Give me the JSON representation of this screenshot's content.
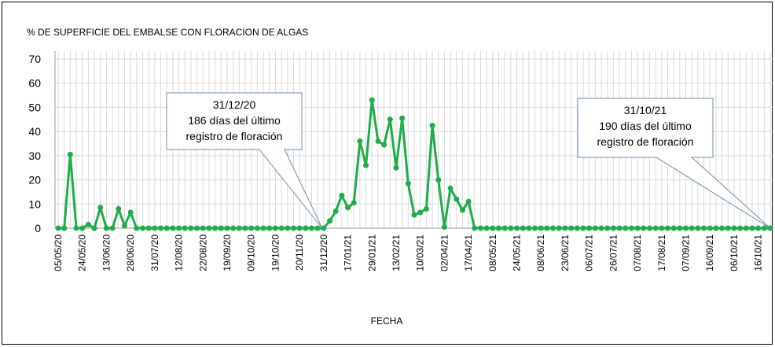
{
  "chart_data": {
    "type": "line",
    "title": "% DE SUPERFICIE DEL EMBALSE CON FLORACION DE ALGAS",
    "x_label": "FECHA",
    "categories": [
      "05/05/20",
      null,
      null,
      null,
      "24/05/20",
      null,
      null,
      null,
      "13/06/20",
      null,
      null,
      null,
      "28/06/20",
      null,
      null,
      null,
      "31/07/20",
      null,
      null,
      null,
      "12/08/20",
      null,
      null,
      null,
      "22/08/20",
      null,
      null,
      null,
      "19/09/20",
      null,
      null,
      null,
      "09/10/20",
      null,
      null,
      null,
      "19/10/20",
      null,
      null,
      null,
      "20/11/20",
      null,
      null,
      null,
      "31/12/20",
      null,
      null,
      null,
      "17/01/21",
      null,
      null,
      null,
      "29/01/21",
      null,
      null,
      null,
      "13/02/21",
      null,
      null,
      null,
      "10/03/21",
      null,
      null,
      null,
      "02/04/21",
      null,
      null,
      null,
      "17/04/21",
      null,
      null,
      null,
      "08/05/21",
      null,
      null,
      null,
      "24/05/21",
      null,
      null,
      null,
      "08/06/21",
      null,
      null,
      null,
      "23/06/21",
      null,
      null,
      null,
      "06/07/21",
      null,
      null,
      null,
      "26/07/21",
      null,
      null,
      null,
      "07/08/21",
      null,
      null,
      null,
      "17/08/21",
      null,
      null,
      null,
      "07/09/21",
      null,
      null,
      null,
      "16/09/21",
      null,
      null,
      null,
      "06/10/21",
      null,
      null,
      null,
      "16/10/21",
      null,
      null
    ],
    "values": [
      0,
      0,
      30.5,
      0,
      0,
      1.5,
      0,
      8.5,
      0,
      0,
      8,
      1,
      6.5,
      0,
      0,
      0,
      0,
      0,
      0,
      0,
      0,
      0,
      0,
      0,
      0,
      0,
      0,
      0,
      0,
      0,
      0,
      0,
      0,
      0,
      0,
      0,
      0,
      0,
      0,
      0,
      0,
      0,
      0,
      0,
      0,
      3,
      7,
      13.5,
      8.5,
      10.5,
      36,
      26,
      53,
      36,
      34.5,
      45,
      25,
      45.5,
      18.5,
      5.5,
      6.5,
      8,
      42.5,
      20,
      0.5,
      16.5,
      12,
      7.5,
      11,
      0,
      0,
      0,
      0,
      0,
      0,
      0,
      0,
      0,
      0,
      0,
      0,
      0,
      0,
      0,
      0,
      0,
      0,
      0,
      0,
      0,
      0,
      0,
      0,
      0,
      0,
      0,
      0,
      0,
      0,
      0,
      0,
      0,
      0,
      0,
      0,
      0,
      0,
      0,
      0,
      0,
      0,
      0,
      0,
      0,
      0,
      0,
      0,
      0,
      0
    ],
    "color": "#1ead4a",
    "ylim": [
      0,
      70
    ],
    "yticks": [
      0,
      10,
      20,
      30,
      40,
      50,
      60,
      70
    ],
    "grid": true,
    "annotations": [
      {
        "lines": [
          "31/12/20",
          "186 días del último",
          "registro de floración"
        ]
      },
      {
        "lines": [
          "31/10/21",
          "190 días del último",
          "registro de floración"
        ]
      }
    ]
  }
}
